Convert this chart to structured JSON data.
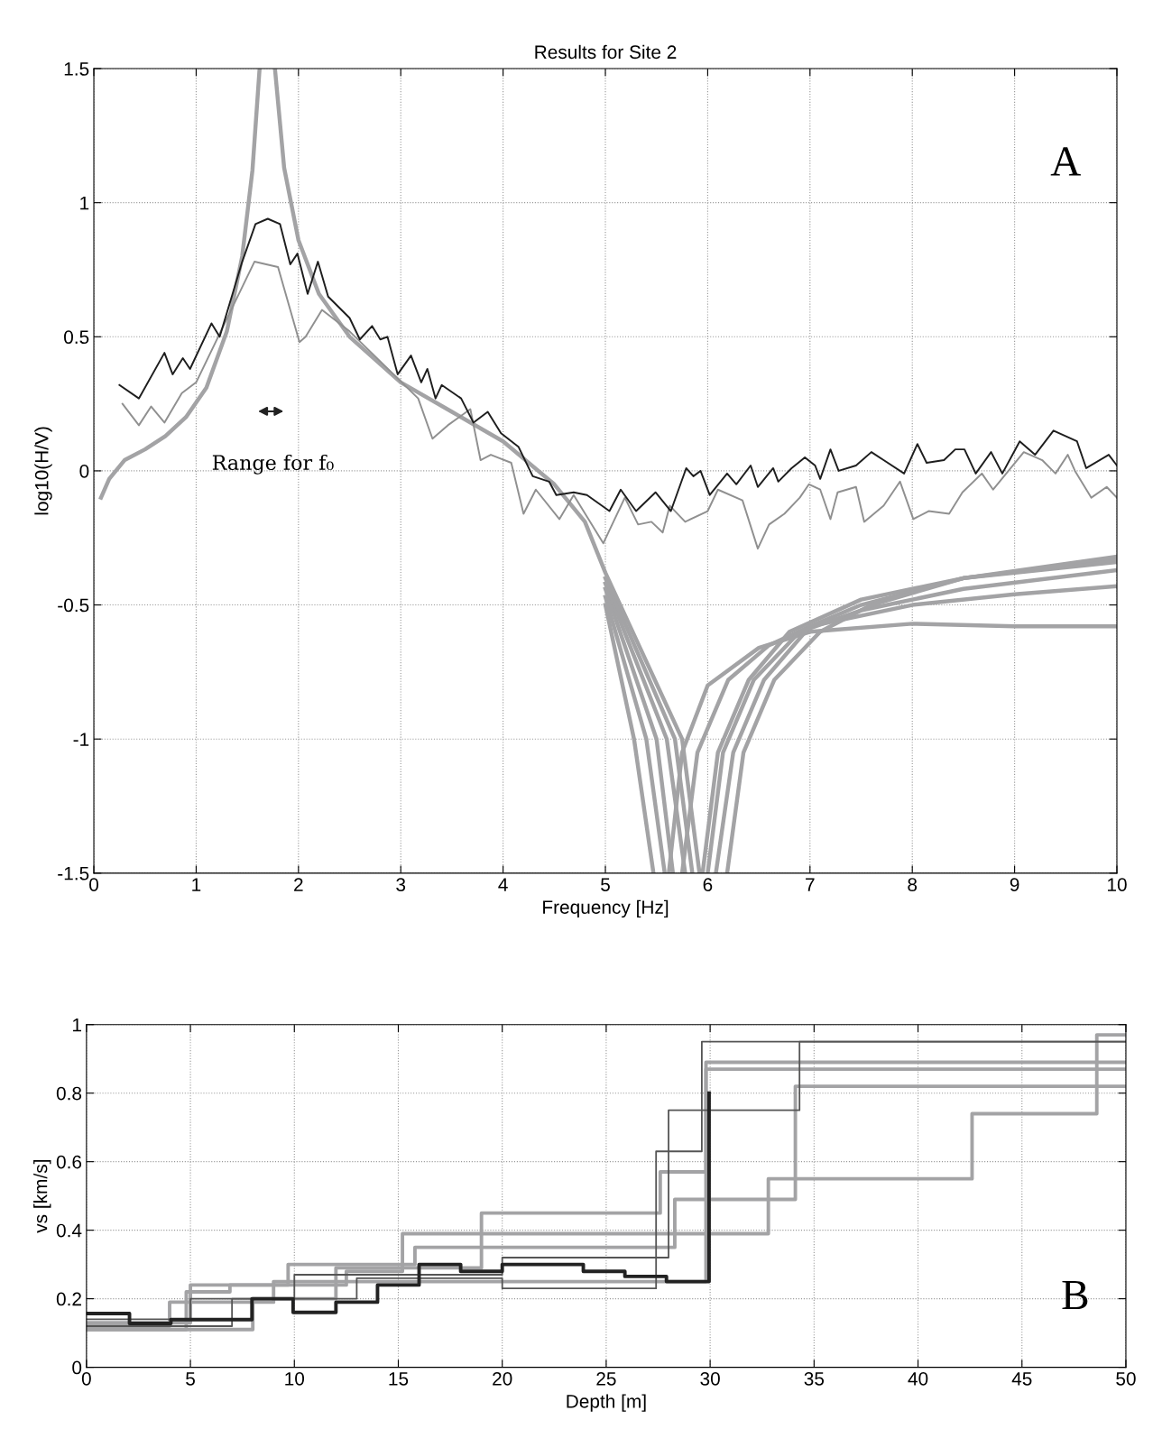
{
  "chart_data": [
    {
      "type": "line",
      "title": "Results for Site 2",
      "xlabel": "Frequency [Hz]",
      "ylabel": "log10(H/V)",
      "xlim": [
        0,
        10
      ],
      "ylim": [
        -1.5,
        1.5
      ],
      "xticks": [
        0,
        1,
        2,
        3,
        4,
        5,
        6,
        7,
        8,
        9,
        10
      ],
      "yticks": [
        -1.5,
        -1,
        -0.5,
        0,
        0.5,
        1,
        1.5
      ],
      "grid": true,
      "line_style": "solid",
      "annotations": [
        "Range for f₀",
        "A"
      ],
      "series": [
        {
          "color": "#a3a3a5",
          "x": [
            5.0,
            5.28,
            5.47,
            5.55,
            5.62,
            5.75,
            6.0,
            6.5,
            7,
            8,
            9,
            10
          ],
          "values": [
            -0.5,
            -1.0,
            -1.5,
            null,
            -1.5,
            -1.05,
            -0.8,
            -0.66,
            -0.6,
            -0.57,
            -0.58,
            -0.58
          ]
        },
        {
          "color": "#a3a3a5",
          "x": [
            5.0,
            5.4,
            5.58,
            5.7,
            5.75,
            5.9,
            6.2,
            6.6,
            7,
            8,
            9,
            10
          ],
          "values": [
            -0.47,
            -1.0,
            -1.5,
            null,
            -1.5,
            -1.05,
            -0.78,
            -0.65,
            -0.58,
            -0.5,
            -0.46,
            -0.43
          ]
        },
        {
          "color": "#a3a3a5",
          "x": [
            5.0,
            5.5,
            5.66,
            5.8,
            5.95,
            6.1,
            6.4,
            6.8,
            7.5,
            8.5,
            10
          ],
          "values": [
            -0.44,
            -1.0,
            -1.5,
            null,
            -1.5,
            -1.05,
            -0.78,
            -0.6,
            -0.48,
            -0.4,
            -0.34
          ]
        },
        {
          "color": "#a3a3a5",
          "x": [
            5.0,
            5.6,
            5.78,
            5.9,
            6.0,
            6.15,
            6.45,
            6.9,
            7.5,
            8.5,
            10
          ],
          "values": [
            -0.42,
            -1.0,
            -1.5,
            null,
            -1.5,
            -1.05,
            -0.78,
            -0.6,
            -0.52,
            -0.44,
            -0.37
          ]
        },
        {
          "color": "#a3a3a5",
          "x": [
            5.0,
            5.68,
            5.85,
            5.95,
            6.08,
            6.25,
            6.55,
            7.0,
            7.5,
            8.5,
            10
          ],
          "values": [
            -0.4,
            -1.0,
            -1.5,
            null,
            -1.5,
            -1.05,
            -0.78,
            -0.58,
            -0.5,
            -0.4,
            -0.33
          ]
        },
        {
          "color": "#a3a3a5",
          "x": [
            0.07,
            0.15,
            0.3,
            0.5,
            0.7,
            0.9,
            1.1,
            1.3,
            1.45,
            1.55,
            1.62,
            1.7,
            1.77,
            1.86,
            2.0,
            2.2,
            2.5,
            3.0,
            3.5,
            4.0,
            4.5,
            4.8,
            5.0,
            5.75,
            5.92,
            6.0,
            6.19,
            6.35,
            6.65,
            7.1,
            7.6,
            8.5,
            10
          ],
          "values": [
            -0.1,
            -0.03,
            0.04,
            0.08,
            0.13,
            0.2,
            0.31,
            0.52,
            0.8,
            1.12,
            1.5,
            null,
            1.5,
            1.13,
            0.86,
            0.66,
            0.5,
            0.33,
            0.22,
            0.11,
            -0.05,
            -0.19,
            -0.38,
            -1.0,
            -1.5,
            null,
            -1.5,
            -1.05,
            -0.78,
            -0.6,
            -0.5,
            -0.4,
            -0.32
          ]
        },
        {
          "color": "#909090",
          "x": [
            0.28,
            0.44,
            0.56,
            0.69,
            0.86,
            1.0,
            1.57,
            1.8,
            2.01,
            2.07,
            2.23,
            2.5,
            3.17,
            3.31,
            3.46,
            3.68,
            3.78,
            3.88,
            4.08,
            4.2,
            4.32,
            4.55,
            4.69,
            4.98,
            5.19,
            5.32,
            5.45,
            5.56,
            5.63,
            5.78,
            6.0,
            6.1,
            6.34,
            6.49,
            6.6,
            6.75,
            6.9,
            6.99,
            7.1,
            7.2,
            7.27,
            7.45,
            7.53,
            7.72,
            7.88,
            8.01,
            8.16,
            8.36,
            8.49,
            8.68,
            8.79,
            9.09,
            9.27,
            9.4,
            9.52,
            9.59,
            9.75,
            9.9,
            10.0
          ],
          "values": [
            0.25,
            0.17,
            0.24,
            0.18,
            0.29,
            0.33,
            0.78,
            0.76,
            0.48,
            0.5,
            0.6,
            0.52,
            0.27,
            0.12,
            0.17,
            0.23,
            0.04,
            0.06,
            0.03,
            -0.16,
            -0.07,
            -0.18,
            -0.09,
            -0.27,
            -0.1,
            -0.2,
            -0.19,
            -0.23,
            -0.13,
            -0.19,
            -0.15,
            -0.07,
            -0.11,
            -0.29,
            -0.2,
            -0.16,
            -0.1,
            -0.05,
            -0.07,
            -0.18,
            -0.08,
            -0.06,
            -0.19,
            -0.13,
            -0.04,
            -0.18,
            -0.15,
            -0.16,
            -0.08,
            -0.01,
            -0.07,
            0.07,
            0.04,
            -0.01,
            0.06,
            0.0,
            -0.1,
            -0.06,
            -0.1
          ]
        },
        {
          "color": "#1e1e1e",
          "x": [
            0.25,
            0.44,
            0.69,
            0.77,
            0.87,
            0.94,
            1.15,
            1.23,
            1.45,
            1.58,
            1.7,
            1.82,
            1.92,
            1.99,
            2.09,
            2.19,
            2.29,
            2.5,
            2.6,
            2.72,
            2.8,
            2.87,
            2.97,
            3.1,
            3.2,
            3.26,
            3.34,
            3.4,
            3.59,
            3.71,
            3.85,
            3.98,
            4.15,
            4.29,
            4.45,
            4.52,
            4.69,
            4.82,
            5.04,
            5.15,
            5.3,
            5.49,
            5.64,
            5.79,
            5.86,
            5.93,
            6.02,
            6.19,
            6.28,
            6.42,
            6.49,
            6.64,
            6.69,
            6.82,
            6.95,
            7.05,
            7.1,
            7.2,
            7.28,
            7.45,
            7.6,
            7.72,
            7.92,
            8.05,
            8.14,
            8.31,
            8.42,
            8.51,
            8.62,
            8.77,
            8.88,
            9.05,
            9.2,
            9.38,
            9.61,
            9.7,
            9.92,
            10.0
          ],
          "values": [
            0.32,
            0.27,
            0.44,
            0.36,
            0.42,
            0.38,
            0.55,
            0.5,
            0.78,
            0.92,
            0.94,
            0.92,
            0.77,
            0.81,
            0.66,
            0.78,
            0.65,
            0.57,
            0.49,
            0.54,
            0.49,
            0.5,
            0.36,
            0.43,
            0.33,
            0.38,
            0.27,
            0.32,
            0.27,
            0.18,
            0.22,
            0.14,
            0.09,
            -0.02,
            -0.04,
            -0.09,
            -0.08,
            -0.09,
            -0.15,
            -0.07,
            -0.15,
            -0.08,
            -0.15,
            0.01,
            -0.02,
            0.0,
            -0.09,
            -0.01,
            -0.05,
            0.02,
            -0.06,
            0.01,
            -0.04,
            0.01,
            0.05,
            0.02,
            -0.03,
            0.08,
            0.0,
            0.02,
            0.07,
            0.04,
            -0.01,
            0.1,
            0.03,
            0.04,
            0.08,
            0.08,
            -0.01,
            0.07,
            -0.01,
            0.11,
            0.06,
            0.15,
            0.11,
            0.01,
            0.06,
            0.02
          ]
        }
      ]
    },
    {
      "type": "step",
      "xlabel": "Depth [m]",
      "ylabel": "vs [km/s]",
      "xlim": [
        0,
        50
      ],
      "ylim": [
        0,
        1
      ],
      "xticks": [
        0,
        5,
        10,
        15,
        20,
        25,
        30,
        35,
        40,
        45,
        50
      ],
      "yticks": [
        0,
        0.2,
        0.4,
        0.6,
        0.8,
        1
      ],
      "grid": true,
      "line_style": "solid",
      "annotations": [
        "B"
      ],
      "series": [
        {
          "color": "#a3a3a5",
          "x": [
            0,
            4.8,
            6.9,
            12.5,
            15.2,
            32.8,
            42.6,
            48.6,
            50
          ],
          "values": [
            0.11,
            0.22,
            0.24,
            0.28,
            0.39,
            0.55,
            0.74,
            0.97,
            0.97
          ]
        },
        {
          "color": "#a3a3a5",
          "x": [
            0,
            8,
            12,
            19,
            27.6,
            29.8,
            50
          ],
          "values": [
            0.11,
            0.2,
            0.29,
            0.45,
            0.57,
            0.89,
            0.89
          ]
        },
        {
          "color": "#a3a3a5",
          "x": [
            0,
            5,
            9.7,
            15.8,
            28.3,
            34.1,
            50
          ],
          "values": [
            0.13,
            0.24,
            0.3,
            0.35,
            0.49,
            0.82,
            0.82
          ]
        },
        {
          "color": "#a3a3a5",
          "x": [
            0,
            4,
            9,
            29.8,
            50
          ],
          "values": [
            0.12,
            0.19,
            0.25,
            0.87,
            0.87
          ]
        },
        {
          "color": "#555555",
          "x": [
            0,
            7,
            10,
            20,
            28,
            34.3,
            50
          ],
          "values": [
            0.12,
            0.2,
            0.27,
            0.32,
            0.75,
            0.95,
            0.95
          ]
        },
        {
          "color": "#555555",
          "x": [
            0,
            5,
            13,
            20,
            27.4,
            29.6,
            50
          ],
          "values": [
            0.14,
            0.2,
            0.26,
            0.23,
            0.63,
            0.95,
            0.95
          ]
        },
        {
          "color": "#222222",
          "x": [
            0,
            2.07,
            4.06,
            7.96,
            9.94,
            12.0,
            14.0,
            16.0,
            18.0,
            20.0,
            23.9,
            25.9,
            27.9,
            29.95
          ],
          "values": [
            0.157,
            0.128,
            0.139,
            0.2,
            0.16,
            0.19,
            0.24,
            0.3,
            0.28,
            0.3,
            0.28,
            0.265,
            0.25,
            0.8
          ]
        }
      ]
    }
  ]
}
